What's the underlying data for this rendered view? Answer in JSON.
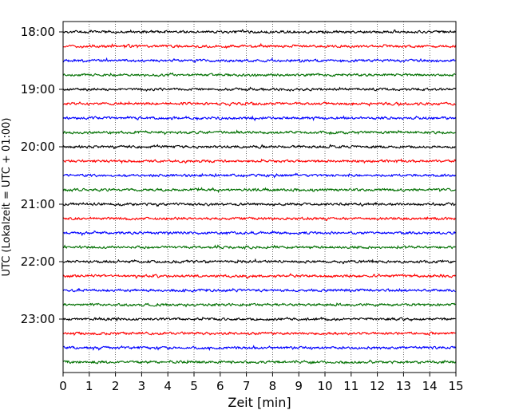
{
  "chart_data": {
    "type": "line",
    "subtype": "helicorder",
    "xlabel": "Zeit  [min]",
    "ylabel": "UTC (Lokalzeit = UTC + 01:00)",
    "xlim": [
      0,
      15
    ],
    "x_ticks": [
      "0",
      "1",
      "2",
      "3",
      "4",
      "5",
      "6",
      "7",
      "8",
      "9",
      "10",
      "11",
      "12",
      "13",
      "14",
      "15"
    ],
    "y_tick_labels": [
      "18:00",
      "19:00",
      "20:00",
      "21:00",
      "22:00",
      "23:00"
    ],
    "traces_per_hour": 4,
    "trace_minutes": 15,
    "trace_start_times": [
      "18:00",
      "18:15",
      "18:30",
      "18:45",
      "19:00",
      "19:15",
      "19:30",
      "19:45",
      "20:00",
      "20:15",
      "20:30",
      "20:45",
      "21:00",
      "21:15",
      "21:30",
      "21:45",
      "22:00",
      "22:15",
      "22:30",
      "22:45",
      "23:00",
      "23:15",
      "23:30",
      "23:45"
    ],
    "trace_colors": [
      "#000000",
      "#ff0000",
      "#0000ff",
      "#007000"
    ],
    "grid": {
      "x": true,
      "x_style": "dotted",
      "y": false
    }
  }
}
